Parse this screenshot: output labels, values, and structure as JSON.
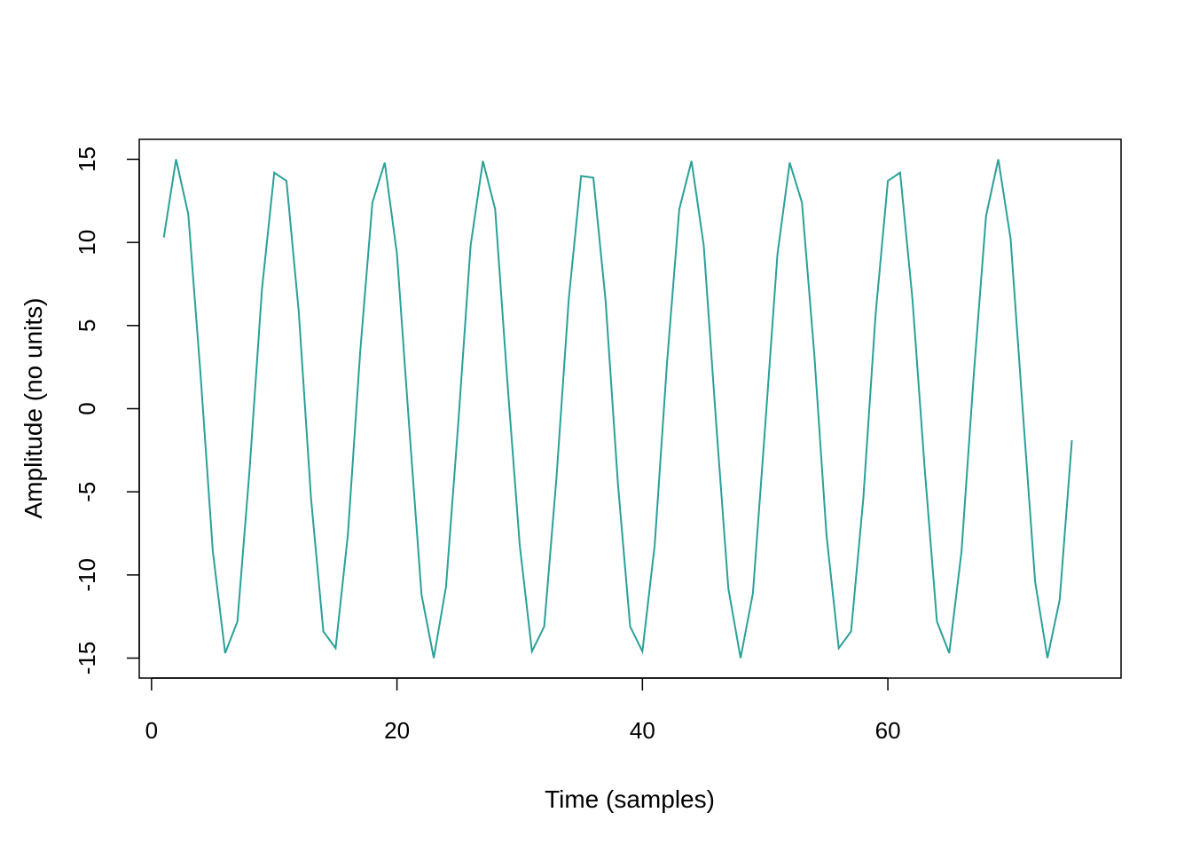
{
  "chart_data": {
    "type": "line",
    "title": "",
    "xlabel": "Time (samples)",
    "ylabel": "Amplitude (no units)",
    "xlim": [
      -1,
      79
    ],
    "ylim": [
      -16.2,
      16.2
    ],
    "xticks": [
      0,
      20,
      40,
      60
    ],
    "yticks": [
      -15,
      -10,
      -5,
      0,
      5,
      10,
      15
    ],
    "grid": false,
    "legend": "none",
    "series": [
      {
        "color": "#2aa198",
        "x": [
          1,
          2,
          3,
          4,
          5,
          6,
          7,
          8,
          9,
          10,
          11,
          12,
          13,
          14,
          15,
          16,
          17,
          18,
          19,
          20,
          21,
          22,
          23,
          24,
          25,
          26,
          27,
          28,
          29,
          30,
          31,
          32,
          33,
          34,
          35,
          36,
          37,
          38,
          39,
          40,
          41,
          42,
          43,
          44,
          45,
          46,
          47,
          48,
          49,
          50,
          51,
          52,
          53,
          54,
          55,
          56,
          57,
          58,
          59,
          60,
          61,
          62,
          63,
          64,
          65,
          66,
          67,
          68,
          69,
          70,
          71,
          72,
          73,
          74,
          75
        ],
        "y": [
          10.3,
          15.0,
          11.7,
          2.0,
          -8.6,
          -14.7,
          -12.8,
          -3.6,
          7.2,
          14.2,
          13.7,
          5.8,
          -5.4,
          -13.4,
          -14.4,
          -7.6,
          3.4,
          12.4,
          14.8,
          9.3,
          -1.1,
          -11.2,
          -15.0,
          -10.7,
          -0.8,
          9.8,
          14.9,
          12.0,
          1.6,
          -8.2,
          -14.6,
          -13.1,
          -4.1,
          6.6,
          14.0,
          13.9,
          6.5,
          -4.5,
          -13.1,
          -14.6,
          -8.2,
          2.7,
          12.0,
          14.9,
          9.8,
          -0.8,
          -10.8,
          -15.0,
          -11.1,
          -1.1,
          9.3,
          14.8,
          12.4,
          3.3,
          -7.6,
          -14.4,
          -13.4,
          -5.4,
          5.7,
          13.7,
          14.2,
          6.6,
          -3.6,
          -12.8,
          -14.7,
          -8.6,
          2.0,
          11.6,
          15.0,
          10.2,
          -0.2,
          -10.4,
          -15.0,
          -11.5,
          -1.9
        ]
      }
    ]
  }
}
